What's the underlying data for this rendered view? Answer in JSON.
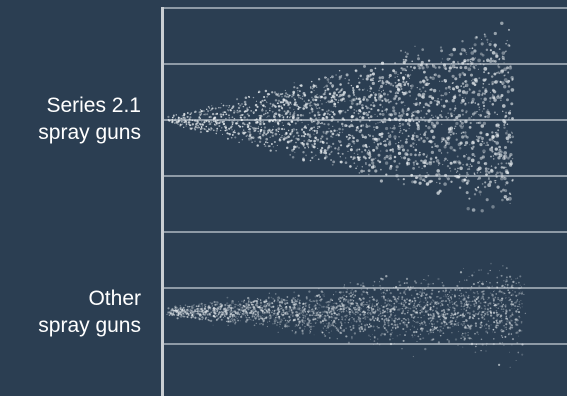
{
  "rows": [
    {
      "line1": "Series 2.1",
      "line2": "spray guns",
      "pattern": "tight-cone"
    },
    {
      "line1": "Other",
      "line2": "spray guns",
      "pattern": "diffuse-cloud"
    }
  ],
  "colors": {
    "background": "#2b3e52",
    "axis": "#c9ced3",
    "gridline": "#8e9aa6",
    "spray": "#e8edf0"
  }
}
